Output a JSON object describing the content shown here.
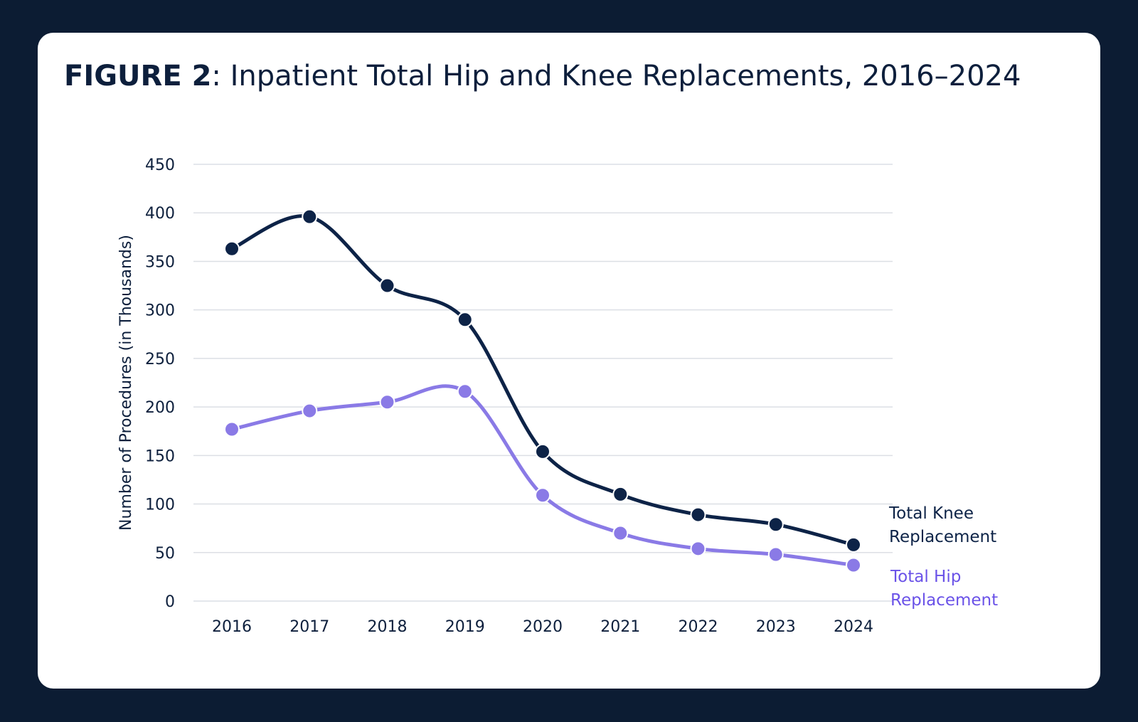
{
  "figure": {
    "label": "FIGURE 2",
    "title": ": Inpatient Total Hip and Knee Replacements, 2016–2024"
  },
  "chart_data": {
    "type": "line",
    "title": "FIGURE 2: Inpatient Total Hip and Knee Replacements, 2016–2024",
    "xlabel": "",
    "ylabel": "Number of Procedures (in Thousands)",
    "x": [
      "2016",
      "2017",
      "2018",
      "2019",
      "2020",
      "2021",
      "2022",
      "2023",
      "2024"
    ],
    "ylim": [
      0,
      450
    ],
    "yticks": [
      0,
      50,
      100,
      150,
      200,
      250,
      300,
      350,
      400,
      450
    ],
    "grid": "horizontal",
    "legend": "inline-right",
    "series": [
      {
        "name": "Total Knee Replacement",
        "label_lines": [
          "Total Knee",
          "Replacement"
        ],
        "color": "#0d2347",
        "values": [
          363,
          396,
          325,
          290,
          154,
          110,
          89,
          79,
          58
        ]
      },
      {
        "name": "Total Hip Replacement",
        "label_lines": [
          "Total Hip",
          "Replacement"
        ],
        "color": "#8a7ae6",
        "label_color": "#6a52e8",
        "values": [
          177,
          196,
          205,
          216,
          109,
          70,
          54,
          48,
          37
        ]
      }
    ]
  }
}
